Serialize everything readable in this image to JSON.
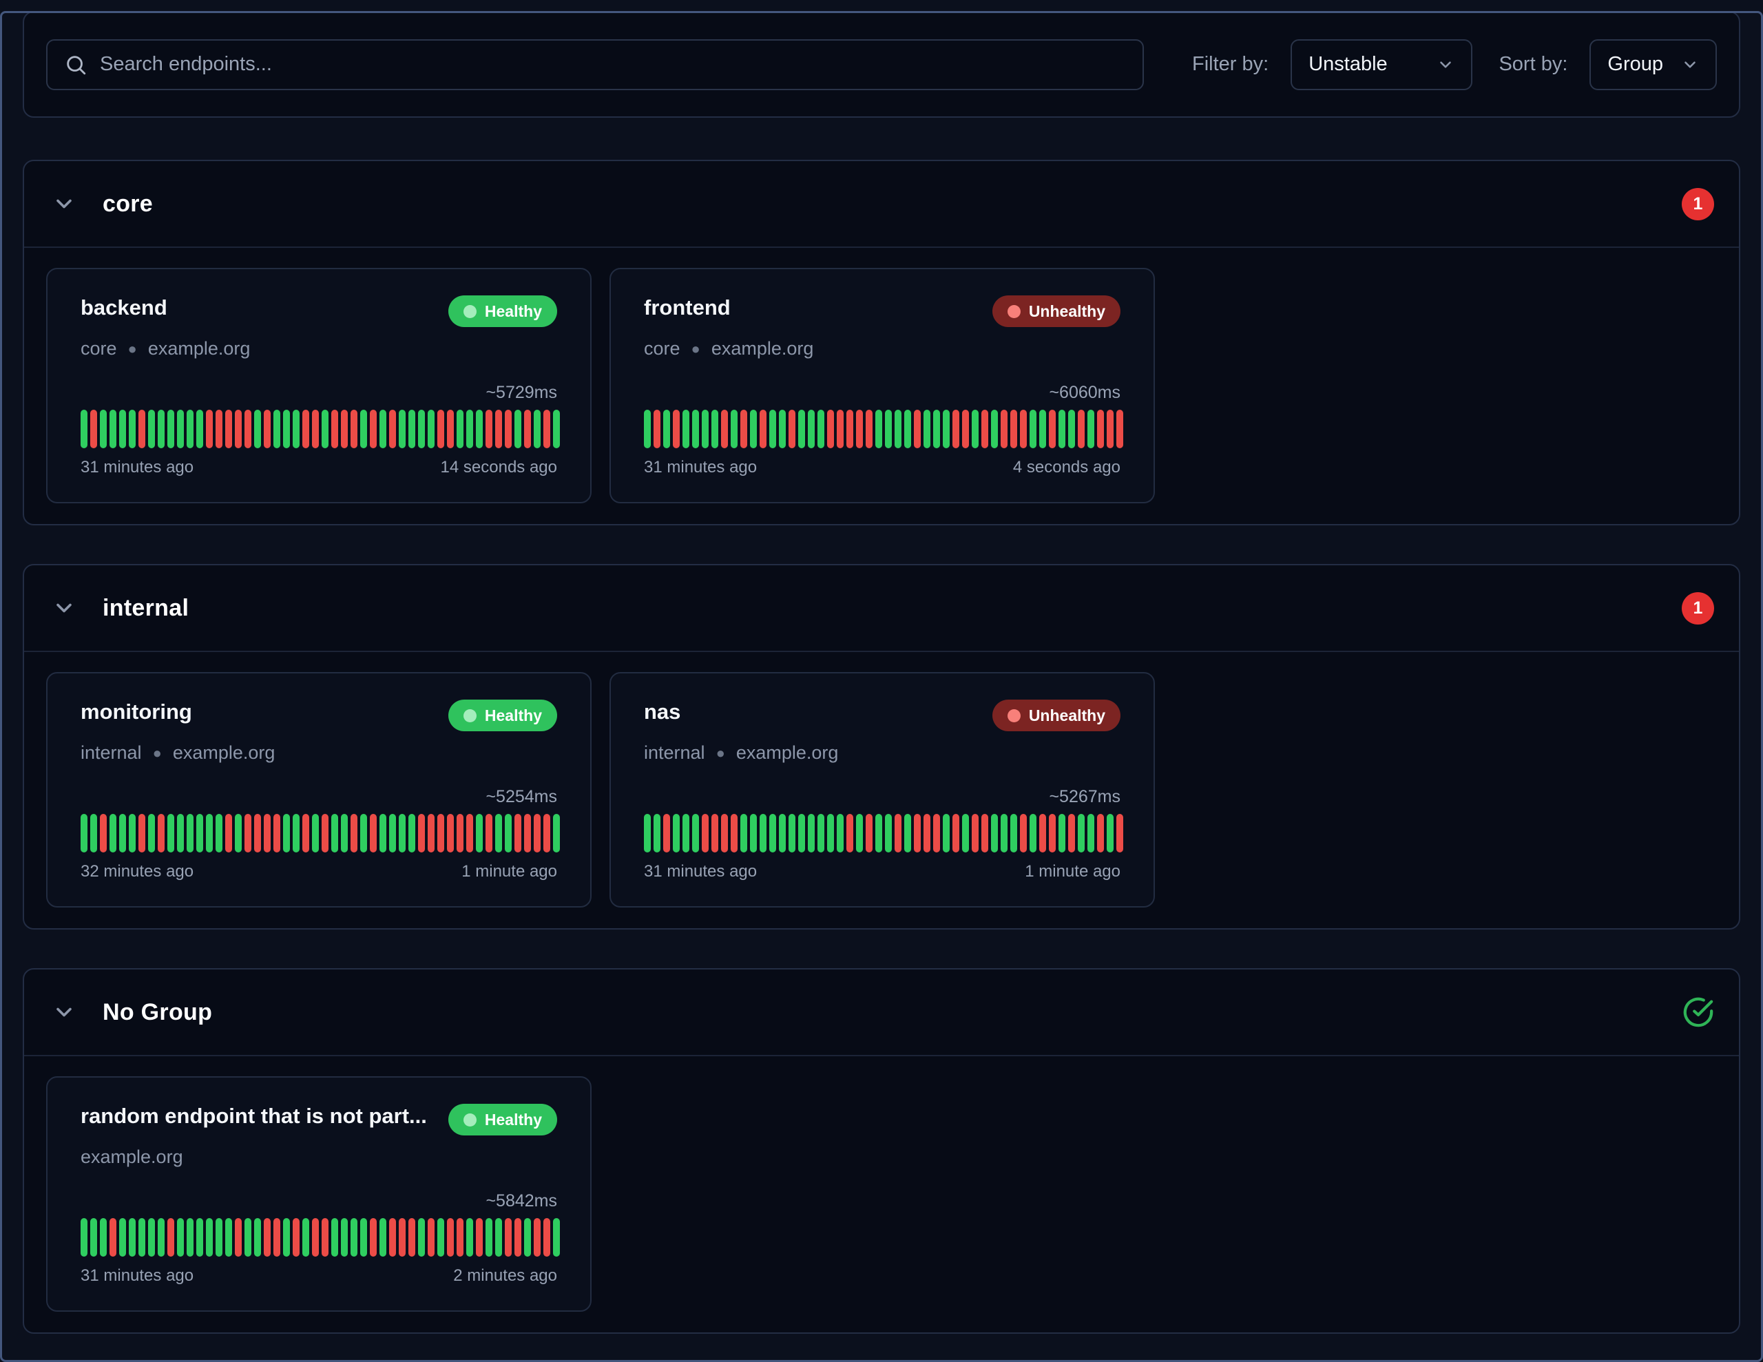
{
  "topbar": {
    "search_placeholder": "Search endpoints...",
    "filter_label": "Filter by:",
    "filter_value": "Unstable",
    "sort_label": "Sort by:",
    "sort_value": "Group"
  },
  "colors": {
    "healthy_badge": "#2fc25d",
    "unhealthy_badge": "#7c2422",
    "bar_up": "#2fce60",
    "bar_down": "#ec4c47",
    "count_badge": "#e63131",
    "check_icon": "#2fb457"
  },
  "groups": [
    {
      "name": "core",
      "badge": "1",
      "badge_type": "count",
      "endpoints": [
        {
          "name": "backend",
          "group": "core",
          "host": "example.org",
          "status": "Healthy",
          "response_time": "~5729ms",
          "start": "31 minutes ago",
          "end": "14 seconds ago",
          "bars": "grggggrggggggrrrrrgrgggrrgrrrgrgrggggrrgggrrrgrgrg"
        },
        {
          "name": "frontend",
          "group": "core",
          "host": "example.org",
          "status": "Unhealthy",
          "response_time": "~6060ms",
          "start": "31 minutes ago",
          "end": "4 seconds ago",
          "bars": "grgrggggrgrgrggrgggrrrrrggggrgggrrgrgrrrggrggrgrrr"
        }
      ]
    },
    {
      "name": "internal",
      "badge": "1",
      "badge_type": "count",
      "endpoints": [
        {
          "name": "monitoring",
          "group": "internal",
          "host": "example.org",
          "status": "Healthy",
          "response_time": "~5254ms",
          "start": "32 minutes ago",
          "end": "1 minute ago",
          "bars": "ggrgggrgrggggggrgrrrrggrgrggrgrggggrrrrrrgrggrrrrg"
        },
        {
          "name": "nas",
          "group": "internal",
          "host": "example.org",
          "status": "Unhealthy",
          "response_time": "~5267ms",
          "start": "31 minutes ago",
          "end": "1 minute ago",
          "bars": "ggrgggrrrrgggggggggggrgrggrgrrrgrgrrgggrgrrgrggrgr"
        }
      ]
    },
    {
      "name": "No Group",
      "badge": "",
      "badge_type": "check",
      "endpoints": [
        {
          "name": "random endpoint that is not part...",
          "group": "",
          "host": "example.org",
          "status": "Healthy",
          "response_time": "~5842ms",
          "start": "31 minutes ago",
          "end": "2 minutes ago",
          "bars": "gggrgggggrggggggrggrrgrgrrggggrgrrrgrgrrgrggrrgrrg"
        }
      ]
    }
  ]
}
